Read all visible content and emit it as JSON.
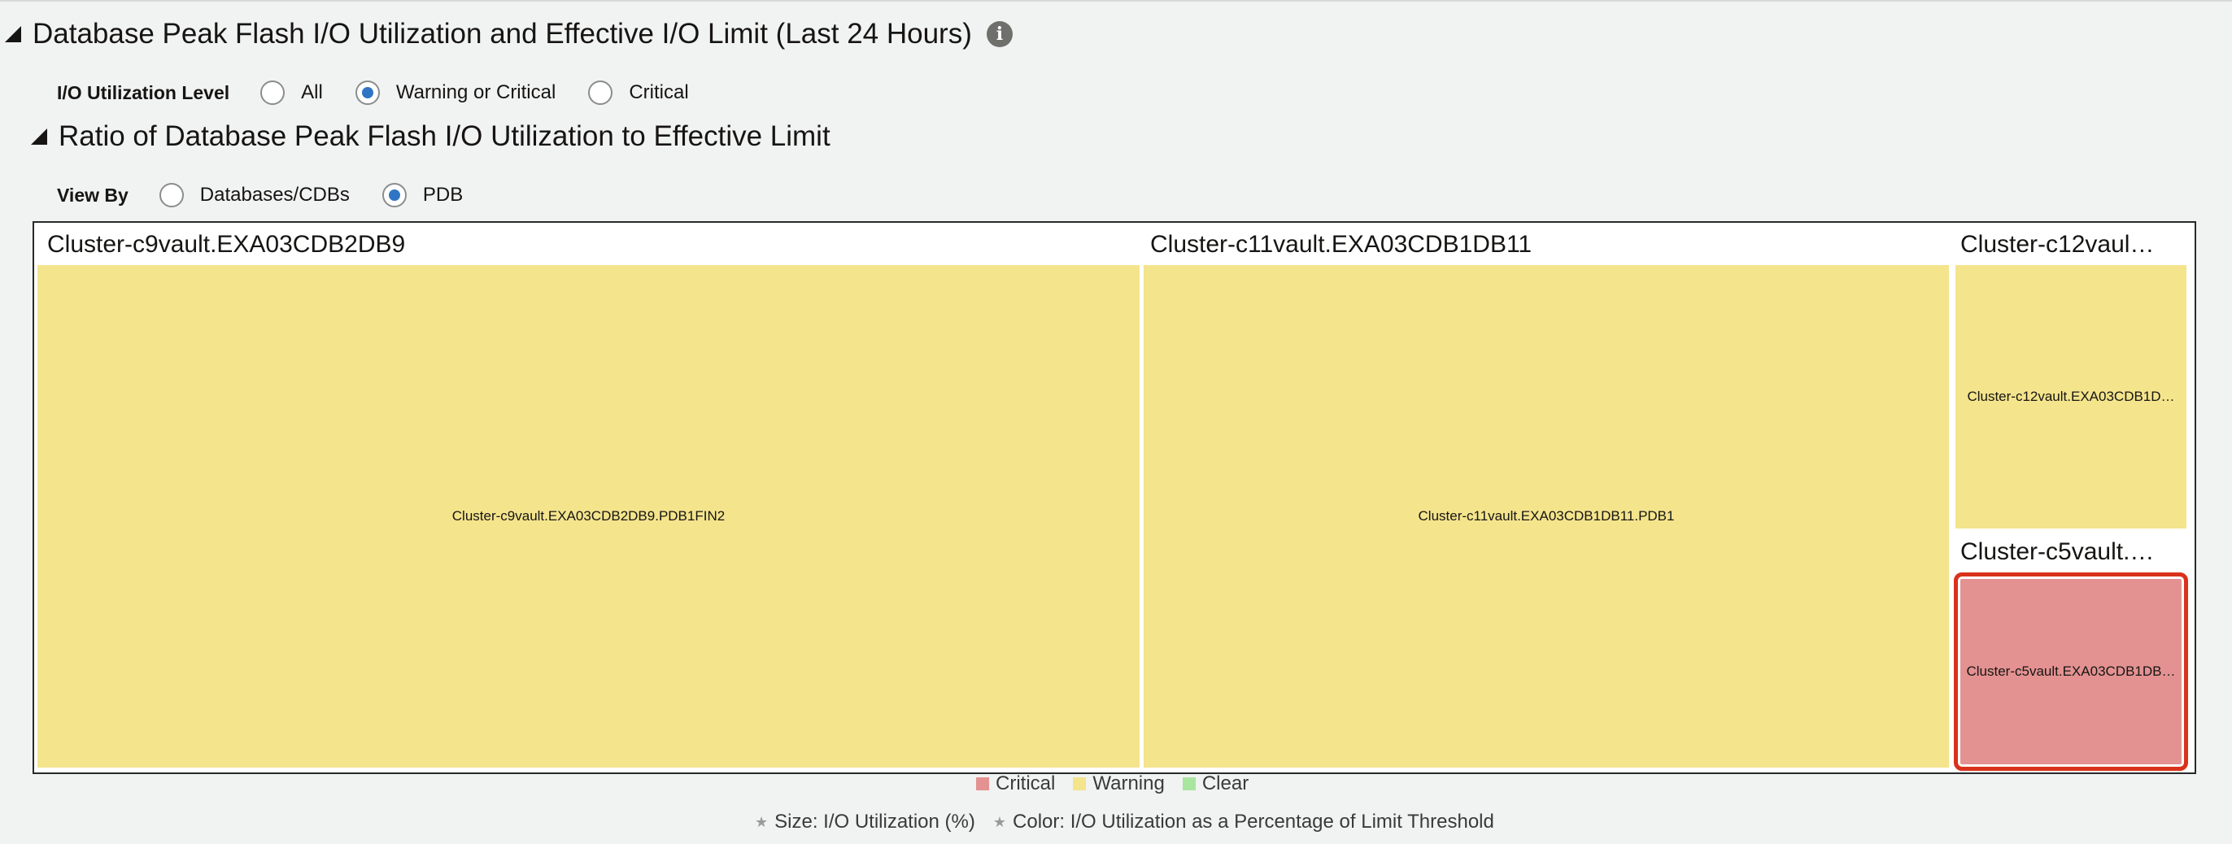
{
  "section1": {
    "title": "Database Peak Flash I/O Utilization and Effective I/O Limit (Last 24 Hours)",
    "info_glyph": "i"
  },
  "io_level": {
    "label": "I/O Utilization Level",
    "options": [
      "All",
      "Warning or Critical",
      "Critical"
    ],
    "selected": "Warning or Critical"
  },
  "section2": {
    "title": "Ratio of Database Peak Flash I/O Utilization to Effective Limit"
  },
  "view_by": {
    "label": "View By",
    "options": [
      "Databases/CDBs",
      "PDB"
    ],
    "selected": "PDB"
  },
  "treemap": {
    "groups": [
      {
        "title": "Cluster-c9vault.EXA03CDB2DB9",
        "tile": "Cluster-c9vault.EXA03CDB2DB9.PDB1FIN2",
        "status": "Warning"
      },
      {
        "title": "Cluster-c11vault.EXA03CDB1DB11",
        "tile": "Cluster-c11vault.EXA03CDB1DB11.PDB1",
        "status": "Warning"
      },
      {
        "title": "Cluster-c12vaul…",
        "tile": "Cluster-c12vault.EXA03CDB1D…",
        "status": "Warning"
      },
      {
        "title": "Cluster-c5vault.…",
        "tile": "Cluster-c5vault.EXA03CDB1DB…",
        "status": "Critical"
      }
    ]
  },
  "legend": {
    "items": [
      {
        "label": "Critical",
        "color": "#e39291"
      },
      {
        "label": "Warning",
        "color": "#f4e48c"
      },
      {
        "label": "Clear",
        "color": "#a8e6a0"
      }
    ]
  },
  "footnotes": {
    "size": "Size: I/O Utilization (%)",
    "color": "Color: I/O Utilization as a Percentage of Limit Threshold"
  }
}
